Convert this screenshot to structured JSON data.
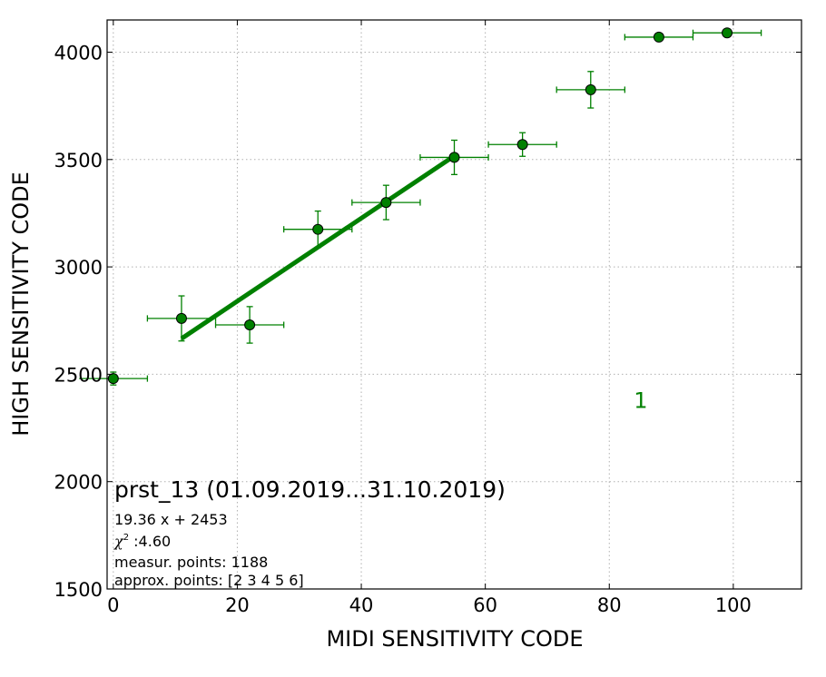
{
  "chart_data": {
    "type": "scatter",
    "title": "prst_13 (01.09.2019...31.10.2019)",
    "xlabel": "MIDI SENSITIVITY CODE",
    "ylabel": "HIGH SENSITIVITY CODE",
    "xlim": [
      -1,
      111
    ],
    "ylim": [
      1500,
      4150
    ],
    "xticks": [
      0,
      20,
      40,
      60,
      80,
      100
    ],
    "yticks": [
      1500,
      2000,
      2500,
      3000,
      3500,
      4000
    ],
    "grid": true,
    "color": "#008000",
    "series": [
      {
        "type": "errorbar",
        "x": [
          0,
          11,
          22,
          33,
          44,
          55,
          66,
          77,
          88,
          99
        ],
        "y": [
          2480,
          2760,
          2730,
          3175,
          3300,
          3510,
          3570,
          3825,
          4070,
          4090
        ],
        "xerr": [
          5.5,
          5.5,
          5.5,
          5.5,
          5.5,
          5.5,
          5.5,
          5.5,
          5.5,
          5.5
        ],
        "yerr": [
          30,
          105,
          85,
          85,
          80,
          80,
          55,
          85,
          0,
          0
        ]
      },
      {
        "type": "fit-line",
        "x": [
          11,
          55
        ],
        "y": [
          2666,
          3517
        ]
      }
    ],
    "annotations": {
      "series_id": {
        "text": "1",
        "x": 88,
        "y": 2420
      },
      "fit": "19.36 x + 2453",
      "chi2_symbol": "χ",
      "chi2_exp": "2",
      "chi2_value": " :4.60",
      "measur": "measur. points: 1188",
      "approx": "approx. points: [2 3 4 5 6]"
    }
  }
}
